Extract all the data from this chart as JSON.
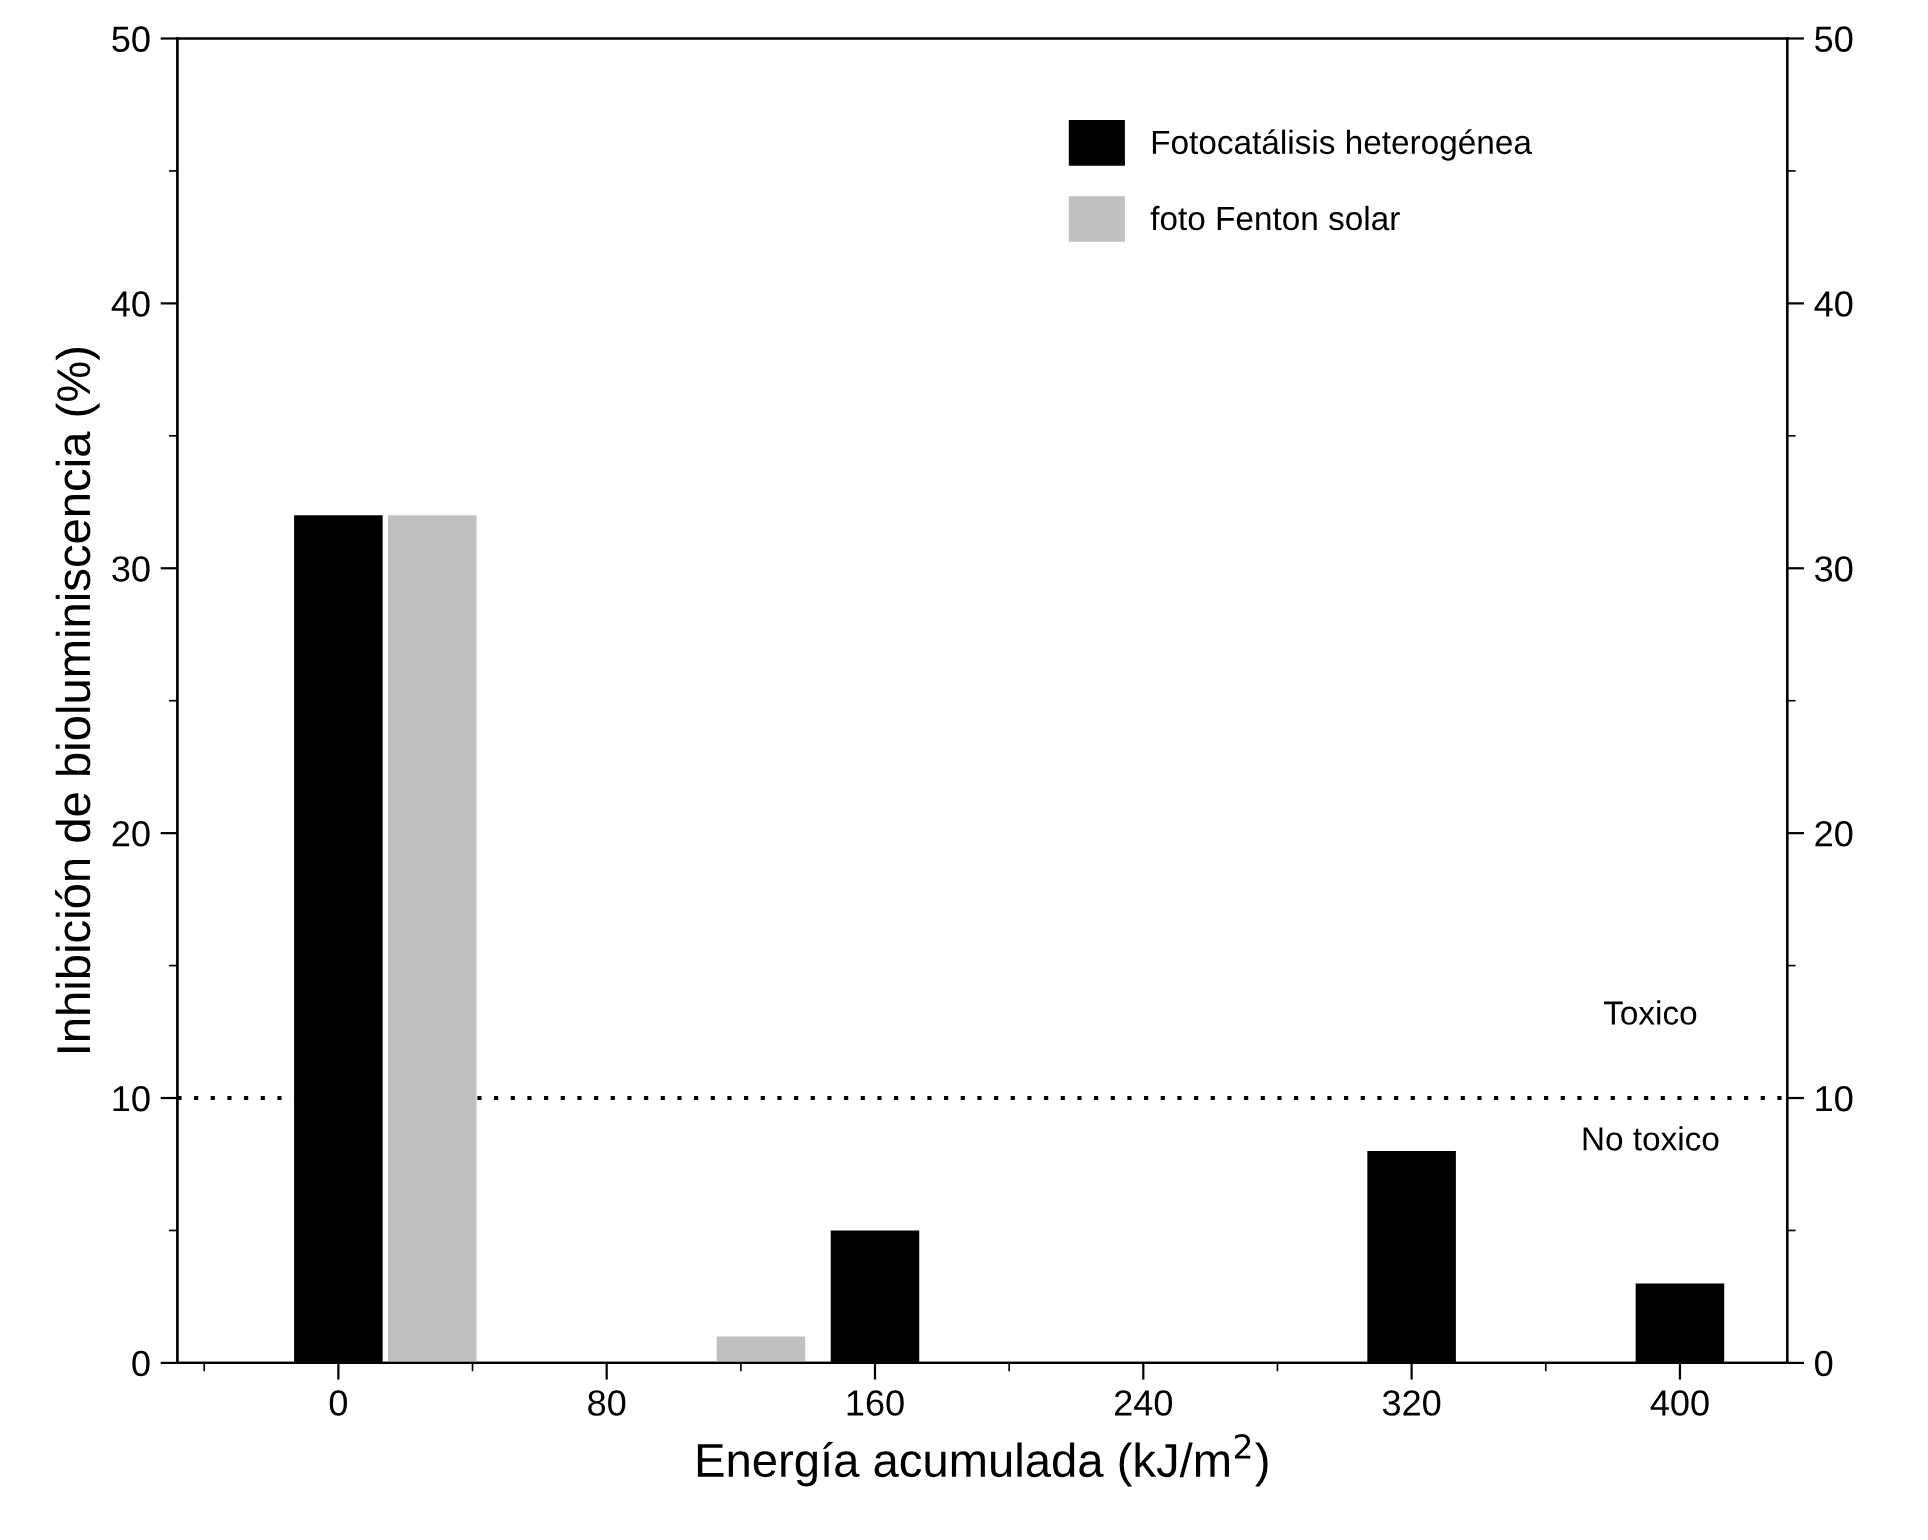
{
  "chart_data": {
    "type": "bar",
    "xlabel": "Energía acumulada (kJ/m$^{2}$)",
    "ylabel": "Inhibición de bioluminiscencia (%)",
    "series": [
      {
        "name": "Fotocatálisis heterogénea",
        "color": "#000000",
        "x": [
          0,
          160,
          320,
          400
        ],
        "values": [
          32,
          5,
          8,
          3
        ]
      },
      {
        "name": "foto Fenton solar",
        "color": "#c0c0c0",
        "x": [
          28,
          126
        ],
        "values": [
          32,
          1
        ]
      }
    ],
    "xlim": [
      -48,
      432
    ],
    "xticks": [
      0,
      80,
      160,
      240,
      320,
      400
    ],
    "ylim": [
      0,
      50
    ],
    "yticks": [
      0,
      10,
      20,
      30,
      40,
      50
    ],
    "y2lim": [
      0,
      50
    ],
    "y2ticks": [
      0,
      10,
      20,
      30,
      40,
      50
    ],
    "ref_lines": [
      {
        "axis": "y",
        "value": 10,
        "color": "#000000",
        "line_style": "dotted"
      }
    ],
    "annotations": [
      "Toxico",
      "No toxico"
    ],
    "legend": "top right",
    "grid": false
  }
}
